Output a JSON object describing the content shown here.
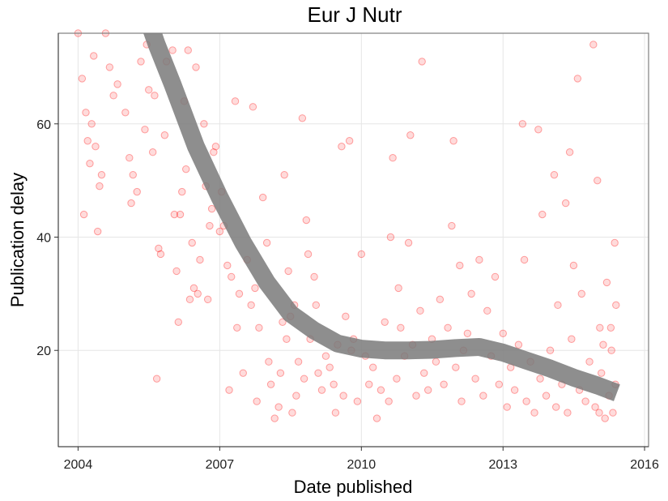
{
  "chart_data": {
    "type": "scatter",
    "title": "Eur J Nutr",
    "xlabel": "Date published",
    "ylabel": "Publication delay",
    "x_ticks": [
      "2004",
      "2007",
      "2010",
      "2013",
      "2016"
    ],
    "y_ticks": [
      20,
      40,
      60
    ],
    "xlim": [
      "2003-08-01",
      "2016-02-01"
    ],
    "ylim": [
      3,
      76
    ],
    "grid": true,
    "point_color": "#ff0000",
    "point_opacity": 0.14,
    "smooth_color": "#7a7a7a",
    "points": [
      [
        "2004-01-01",
        76
      ],
      [
        "2004-02-01",
        68
      ],
      [
        "2004-02-15",
        44
      ],
      [
        "2004-03-01",
        62
      ],
      [
        "2004-03-15",
        57
      ],
      [
        "2004-04-01",
        53
      ],
      [
        "2004-05-01",
        72
      ],
      [
        "2004-05-15",
        56
      ],
      [
        "2004-06-01",
        41
      ],
      [
        "2004-06-15",
        49
      ],
      [
        "2004-04-15",
        60
      ],
      [
        "2004-07-01",
        51
      ],
      [
        "2004-08-01",
        76
      ],
      [
        "2004-09-01",
        70
      ],
      [
        "2004-10-01",
        65
      ],
      [
        "2004-11-01",
        67
      ],
      [
        "2005-01-01",
        62
      ],
      [
        "2005-02-01",
        54
      ],
      [
        "2005-02-15",
        46
      ],
      [
        "2005-03-01",
        51
      ],
      [
        "2005-04-01",
        48
      ],
      [
        "2005-05-01",
        71
      ],
      [
        "2005-06-01",
        59
      ],
      [
        "2005-06-15",
        74
      ],
      [
        "2005-07-01",
        66
      ],
      [
        "2005-08-01",
        55
      ],
      [
        "2005-08-15",
        65
      ],
      [
        "2005-09-01",
        15
      ],
      [
        "2005-09-15",
        38
      ],
      [
        "2005-10-01",
        37
      ],
      [
        "2005-11-01",
        58
      ],
      [
        "2005-11-15",
        71
      ],
      [
        "2006-01-01",
        73
      ],
      [
        "2006-01-15",
        44
      ],
      [
        "2006-02-01",
        34
      ],
      [
        "2006-02-15",
        25
      ],
      [
        "2006-03-01",
        44
      ],
      [
        "2006-03-15",
        48
      ],
      [
        "2006-04-01",
        64
      ],
      [
        "2006-04-15",
        52
      ],
      [
        "2006-05-01",
        73
      ],
      [
        "2006-05-15",
        29
      ],
      [
        "2006-06-01",
        39
      ],
      [
        "2006-06-15",
        31
      ],
      [
        "2006-07-01",
        70
      ],
      [
        "2006-07-15",
        30
      ],
      [
        "2006-08-01",
        36
      ],
      [
        "2006-09-01",
        60
      ],
      [
        "2006-09-15",
        49
      ],
      [
        "2006-10-01",
        29
      ],
      [
        "2006-10-15",
        42
      ],
      [
        "2006-11-01",
        45
      ],
      [
        "2006-11-15",
        55
      ],
      [
        "2006-12-01",
        56
      ],
      [
        "2007-01-01",
        41
      ],
      [
        "2007-01-15",
        48
      ],
      [
        "2007-02-01",
        42
      ],
      [
        "2007-03-01",
        35
      ],
      [
        "2007-03-15",
        13
      ],
      [
        "2007-04-01",
        33
      ],
      [
        "2007-05-01",
        64
      ],
      [
        "2007-05-15",
        24
      ],
      [
        "2007-06-01",
        30
      ],
      [
        "2007-07-01",
        16
      ],
      [
        "2007-08-01",
        36
      ],
      [
        "2007-09-01",
        28
      ],
      [
        "2007-09-15",
        63
      ],
      [
        "2007-10-01",
        31
      ],
      [
        "2007-10-15",
        11
      ],
      [
        "2007-11-01",
        24
      ],
      [
        "2007-12-01",
        47
      ],
      [
        "2008-01-01",
        39
      ],
      [
        "2008-01-15",
        18
      ],
      [
        "2008-02-01",
        14
      ],
      [
        "2008-03-01",
        8
      ],
      [
        "2008-04-01",
        10
      ],
      [
        "2008-04-15",
        16
      ],
      [
        "2008-05-01",
        25
      ],
      [
        "2008-05-15",
        51
      ],
      [
        "2008-06-01",
        22
      ],
      [
        "2008-06-15",
        34
      ],
      [
        "2008-07-01",
        26
      ],
      [
        "2008-07-15",
        9
      ],
      [
        "2008-08-01",
        28
      ],
      [
        "2008-08-15",
        12
      ],
      [
        "2008-09-01",
        18
      ],
      [
        "2008-10-01",
        61
      ],
      [
        "2008-10-15",
        15
      ],
      [
        "2008-11-01",
        43
      ],
      [
        "2008-11-15",
        37
      ],
      [
        "2008-12-01",
        22
      ],
      [
        "2009-01-01",
        33
      ],
      [
        "2009-01-15",
        28
      ],
      [
        "2009-02-01",
        16
      ],
      [
        "2009-03-01",
        13
      ],
      [
        "2009-04-01",
        19
      ],
      [
        "2009-05-01",
        17
      ],
      [
        "2009-06-01",
        14
      ],
      [
        "2009-06-15",
        9
      ],
      [
        "2009-07-01",
        21
      ],
      [
        "2009-08-01",
        56
      ],
      [
        "2009-08-15",
        12
      ],
      [
        "2009-09-01",
        26
      ],
      [
        "2009-10-01",
        57
      ],
      [
        "2009-10-15",
        20
      ],
      [
        "2009-11-01",
        22
      ],
      [
        "2009-12-01",
        11
      ],
      [
        "2010-01-01",
        37
      ],
      [
        "2010-02-01",
        19
      ],
      [
        "2010-03-01",
        14
      ],
      [
        "2010-04-01",
        17
      ],
      [
        "2010-05-01",
        8
      ],
      [
        "2010-06-01",
        13
      ],
      [
        "2010-07-01",
        25
      ],
      [
        "2010-08-01",
        11
      ],
      [
        "2010-08-15",
        40
      ],
      [
        "2010-09-01",
        54
      ],
      [
        "2010-10-01",
        15
      ],
      [
        "2010-10-15",
        31
      ],
      [
        "2010-11-01",
        24
      ],
      [
        "2010-12-01",
        19
      ],
      [
        "2011-01-01",
        39
      ],
      [
        "2011-01-15",
        58
      ],
      [
        "2011-02-01",
        21
      ],
      [
        "2011-03-01",
        12
      ],
      [
        "2011-04-01",
        27
      ],
      [
        "2011-04-15",
        71
      ],
      [
        "2011-05-01",
        16
      ],
      [
        "2011-06-01",
        13
      ],
      [
        "2011-07-01",
        22
      ],
      [
        "2011-08-01",
        18
      ],
      [
        "2011-09-01",
        29
      ],
      [
        "2011-10-01",
        14
      ],
      [
        "2011-11-01",
        24
      ],
      [
        "2011-12-01",
        42
      ],
      [
        "2011-12-15",
        57
      ],
      [
        "2012-01-01",
        17
      ],
      [
        "2012-02-01",
        35
      ],
      [
        "2012-02-15",
        11
      ],
      [
        "2012-03-01",
        20
      ],
      [
        "2012-04-01",
        23
      ],
      [
        "2012-05-01",
        30
      ],
      [
        "2012-06-01",
        15
      ],
      [
        "2012-07-01",
        36
      ],
      [
        "2012-08-01",
        12
      ],
      [
        "2012-09-01",
        27
      ],
      [
        "2012-10-01",
        19
      ],
      [
        "2012-11-01",
        33
      ],
      [
        "2012-12-01",
        14
      ],
      [
        "2013-01-01",
        23
      ],
      [
        "2013-02-01",
        10
      ],
      [
        "2013-03-01",
        17
      ],
      [
        "2013-04-01",
        13
      ],
      [
        "2013-05-01",
        21
      ],
      [
        "2013-06-01",
        60
      ],
      [
        "2013-06-15",
        36
      ],
      [
        "2013-07-01",
        11
      ],
      [
        "2013-08-01",
        18
      ],
      [
        "2013-09-01",
        9
      ],
      [
        "2013-10-01",
        59
      ],
      [
        "2013-10-15",
        15
      ],
      [
        "2013-11-01",
        44
      ],
      [
        "2013-12-01",
        12
      ],
      [
        "2014-01-01",
        20
      ],
      [
        "2014-02-01",
        51
      ],
      [
        "2014-02-15",
        10
      ],
      [
        "2014-03-01",
        28
      ],
      [
        "2014-04-01",
        14
      ],
      [
        "2014-05-01",
        46
      ],
      [
        "2014-05-15",
        9
      ],
      [
        "2014-06-01",
        55
      ],
      [
        "2014-06-15",
        22
      ],
      [
        "2014-07-01",
        35
      ],
      [
        "2014-08-01",
        68
      ],
      [
        "2014-08-15",
        13
      ],
      [
        "2014-09-01",
        30
      ],
      [
        "2014-10-01",
        11
      ],
      [
        "2014-11-01",
        18
      ],
      [
        "2014-12-01",
        74
      ],
      [
        "2014-12-15",
        10
      ],
      [
        "2015-01-01",
        50
      ],
      [
        "2015-01-15",
        9
      ],
      [
        "2015-02-01",
        16
      ],
      [
        "2015-03-01",
        8
      ],
      [
        "2015-03-15",
        32
      ],
      [
        "2015-04-01",
        12
      ],
      [
        "2015-04-15",
        24
      ],
      [
        "2015-05-01",
        9
      ],
      [
        "2015-05-15",
        39
      ],
      [
        "2015-05-20",
        14
      ],
      [
        "2015-05-25",
        28
      ],
      [
        "2015-04-20",
        20
      ],
      [
        "2015-02-15",
        21
      ],
      [
        "2015-01-20",
        24
      ]
    ],
    "smooth": [
      {
        "x": "2005-06-01",
        "y": 80
      },
      {
        "x": "2005-09-01",
        "y": 74
      },
      {
        "x": "2006-01-01",
        "y": 67
      },
      {
        "x": "2006-07-01",
        "y": 56
      },
      {
        "x": "2007-01-01",
        "y": 47
      },
      {
        "x": "2007-07-01",
        "y": 39
      },
      {
        "x": "2008-01-01",
        "y": 32
      },
      {
        "x": "2008-07-01",
        "y": 26.5
      },
      {
        "x": "2009-01-01",
        "y": 23.5
      },
      {
        "x": "2009-07-01",
        "y": 21.2
      },
      {
        "x": "2010-01-01",
        "y": 20.3
      },
      {
        "x": "2010-07-01",
        "y": 20.0
      },
      {
        "x": "2011-01-01",
        "y": 20.0
      },
      {
        "x": "2011-07-01",
        "y": 20.1
      },
      {
        "x": "2012-01-01",
        "y": 20.4
      },
      {
        "x": "2012-07-01",
        "y": 20.6
      },
      {
        "x": "2013-01-01",
        "y": 19.6
      },
      {
        "x": "2013-07-01",
        "y": 18.2
      },
      {
        "x": "2014-01-01",
        "y": 16.8
      },
      {
        "x": "2014-07-01",
        "y": 15.2
      },
      {
        "x": "2015-01-01",
        "y": 13.8
      },
      {
        "x": "2015-06-01",
        "y": 12.5
      }
    ]
  }
}
